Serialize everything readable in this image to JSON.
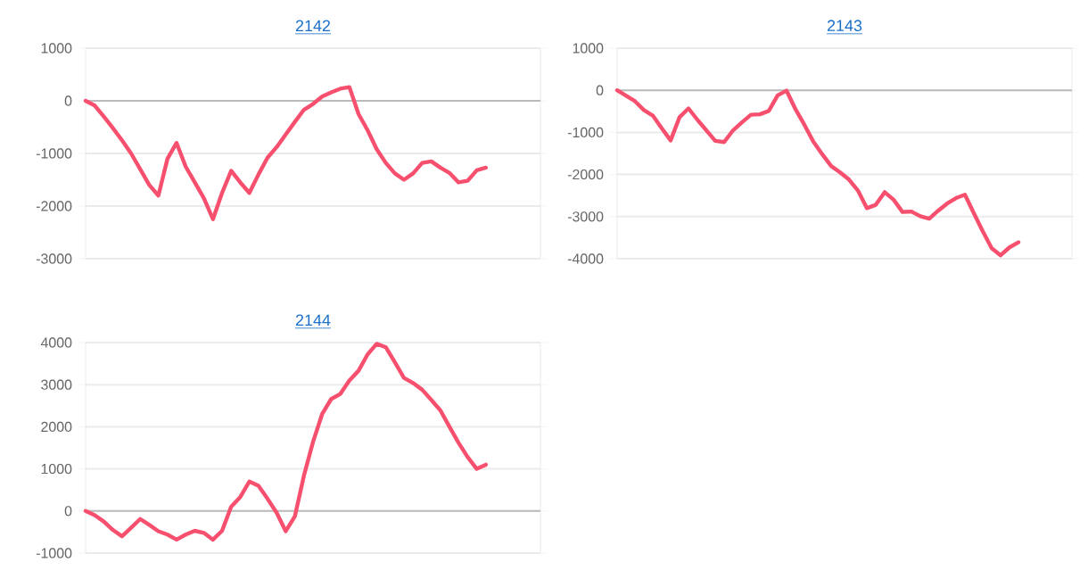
{
  "chart_data": [
    {
      "type": "line",
      "title": "2142",
      "color": "#f7506e",
      "grid": "y",
      "tick_labels": "y",
      "ylim": [
        -3000,
        1000
      ],
      "yticks": [
        -3000,
        -2000,
        -1000,
        0,
        1000
      ],
      "ref_lines": [
        {
          "axis": "y",
          "value": 0,
          "color": "#bbbbbb"
        }
      ],
      "categories": [
        null,
        null,
        null,
        null,
        null,
        null,
        null,
        null,
        null,
        null,
        null,
        null,
        null,
        null,
        null,
        null,
        null,
        null,
        null,
        null,
        null,
        null,
        null,
        null,
        null,
        null,
        null,
        null,
        null,
        null,
        null,
        null,
        null,
        null,
        null,
        null,
        null,
        null,
        null,
        null,
        null,
        null,
        null,
        null,
        null,
        null,
        null,
        null,
        null,
        null,
        null
      ],
      "values": [
        0,
        -90,
        -300,
        -520,
        -750,
        -1000,
        -1300,
        -1600,
        -1800,
        -1100,
        -800,
        -1250,
        -1550,
        -1850,
        -2250,
        -1750,
        -1330,
        -1550,
        -1750,
        -1400,
        -1080,
        -880,
        -640,
        -400,
        -170,
        -60,
        80,
        160,
        230,
        260,
        -250,
        -560,
        -920,
        -1180,
        -1380,
        -1500,
        -1380,
        -1180,
        -1150,
        -1270,
        -1370,
        -1550,
        -1520,
        -1320,
        -1270,
        null,
        null,
        null,
        null,
        null,
        null
      ]
    },
    {
      "type": "line",
      "title": "2143",
      "color": "#f7506e",
      "grid": "y",
      "tick_labels": "y",
      "ylim": [
        -4000,
        1000
      ],
      "yticks": [
        -4000,
        -3000,
        -2000,
        -1000,
        0,
        1000
      ],
      "ref_lines": [
        {
          "axis": "y",
          "value": 0,
          "color": "#bbbbbb"
        }
      ],
      "categories": [
        null,
        null,
        null,
        null,
        null,
        null,
        null,
        null,
        null,
        null,
        null,
        null,
        null,
        null,
        null,
        null,
        null,
        null,
        null,
        null,
        null,
        null,
        null,
        null,
        null,
        null,
        null,
        null,
        null,
        null,
        null,
        null,
        null,
        null,
        null,
        null,
        null,
        null,
        null,
        null,
        null,
        null,
        null,
        null,
        null,
        null,
        null,
        null,
        null,
        null,
        null,
        null
      ],
      "values": [
        0,
        -130,
        -260,
        -470,
        -600,
        -900,
        -1190,
        -640,
        -430,
        -700,
        -950,
        -1200,
        -1230,
        -950,
        -760,
        -580,
        -570,
        -490,
        -120,
        -10,
        -450,
        -820,
        -1220,
        -1520,
        -1800,
        -1950,
        -2120,
        -2380,
        -2800,
        -2720,
        -2420,
        -2600,
        -2890,
        -2880,
        -2990,
        -3050,
        -2860,
        -2690,
        -2560,
        -2480,
        -2920,
        -3350,
        -3750,
        -3920,
        -3730,
        -3610,
        null,
        null,
        null,
        null,
        null,
        null
      ]
    },
    {
      "type": "line",
      "title": "2144",
      "color": "#f7506e",
      "grid": "y",
      "tick_labels": "y",
      "ylim": [
        -1000,
        4000
      ],
      "yticks": [
        -1000,
        0,
        1000,
        2000,
        3000,
        4000
      ],
      "ref_lines": [
        {
          "axis": "y",
          "value": 0,
          "color": "#bbbbbb"
        }
      ],
      "categories": [
        null,
        null,
        null,
        null,
        null,
        null,
        null,
        null,
        null,
        null,
        null,
        null,
        null,
        null,
        null,
        null,
        null,
        null,
        null,
        null,
        null,
        null,
        null,
        null,
        null,
        null,
        null,
        null,
        null,
        null,
        null,
        null,
        null,
        null,
        null,
        null,
        null,
        null,
        null,
        null,
        null,
        null,
        null,
        null,
        null,
        null,
        null,
        null,
        null,
        null,
        null
      ],
      "values": [
        0,
        -100,
        -250,
        -450,
        -600,
        -400,
        -190,
        -330,
        -480,
        -560,
        -680,
        -560,
        -470,
        -520,
        -680,
        -470,
        100,
        330,
        700,
        600,
        290,
        -40,
        -480,
        -130,
        840,
        1640,
        2300,
        2660,
        2780,
        3100,
        3330,
        3720,
        3970,
        3890,
        3530,
        3160,
        3040,
        2880,
        2640,
        2390,
        2000,
        1620,
        1280,
        1000,
        1100,
        null,
        null,
        null,
        null,
        null,
        null
      ]
    }
  ]
}
